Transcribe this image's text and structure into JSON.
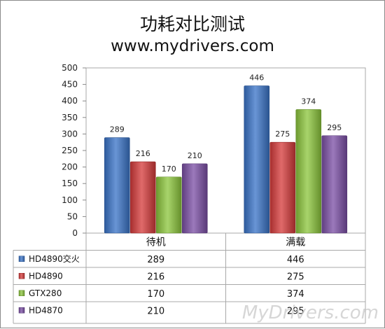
{
  "title": "功耗对比测试",
  "subtitle": "www.mydrivers.com",
  "watermark": "MyDrivers.com",
  "chart_data": {
    "type": "bar",
    "title": "功耗对比测试",
    "subtitle": "www.mydrivers.com",
    "categories": [
      "待机",
      "满载"
    ],
    "series": [
      {
        "name": "HD4890交火",
        "values": [
          289,
          446
        ],
        "color": "#3a74c8"
      },
      {
        "name": "HD4890",
        "values": [
          216,
          275
        ],
        "color": "#d63b3b"
      },
      {
        "name": "GTX280",
        "values": [
          170,
          374
        ],
        "color": "#8cc63c"
      },
      {
        "name": "HD4870",
        "values": [
          210,
          295
        ],
        "color": "#7b4fa6"
      }
    ],
    "ylim": [
      0,
      500
    ],
    "yticks": [
      0,
      50,
      100,
      150,
      200,
      250,
      300,
      350,
      400,
      450,
      500
    ],
    "grid": false,
    "legend": "data-table-below",
    "data_labels": true
  }
}
